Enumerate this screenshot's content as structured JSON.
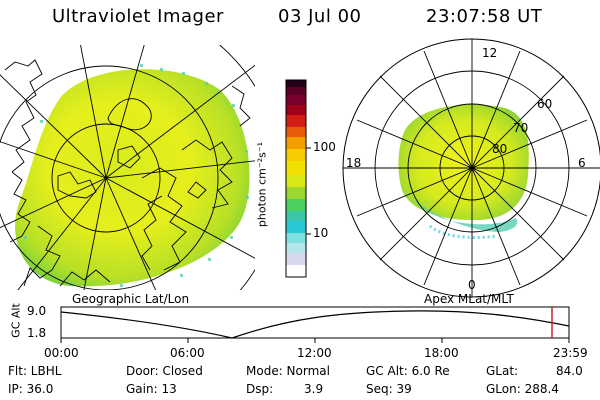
{
  "header": {
    "title": "Ultraviolet Imager",
    "date": "03 Jul 00",
    "time": "23:07:58 UT"
  },
  "colorbar": {
    "unit_label": "photon cm⁻²s⁻¹",
    "tick_100": "100",
    "tick_10": "10",
    "colors": [
      "#ffffff",
      "#d8d8ec",
      "#7fe0e0",
      "#28c8d8",
      "#4cd060",
      "#9ad830",
      "#d8e818",
      "#f2e000",
      "#f29d00",
      "#e43010",
      "#a00018",
      "#5a0028",
      "#240018"
    ]
  },
  "polar_plot": {
    "label_12": "12",
    "label_18": "18",
    "label_6": "6",
    "label_0": "0",
    "label_60": "60",
    "label_70": "70",
    "label_80": "80"
  },
  "labels": {
    "geographic": "Geographic Lat/Lon",
    "apex": "Apex MLat/MLT"
  },
  "altitude_plot": {
    "ylabel": "GC Alt",
    "ymax": "9.0",
    "ymin": "1.8",
    "x_ticks": [
      "00:00",
      "06:00",
      "12:00",
      "18:00",
      "23:59"
    ],
    "current_time_color": "#cc2222"
  },
  "footer": {
    "row1": [
      "Flt: LBHL",
      "Door: Closed",
      "Mode: Normal",
      "GC Alt: 6.0 Re",
      "GLat:",
      "84.0"
    ],
    "row2": [
      "IP: 36.0",
      "Gain: 13",
      "Dsp:",
      "3.9",
      "Seq: 39",
      "GLon: 288.4"
    ]
  }
}
